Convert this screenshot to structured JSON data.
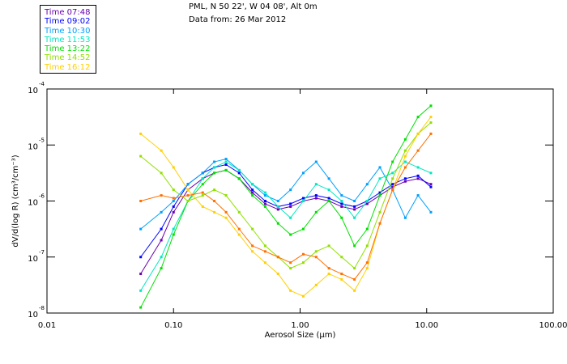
{
  "header": {
    "line1": "PML, N 50 22', W 04 08', Alt 0m",
    "line2": "Data from: 26 Mar 2012"
  },
  "chart_data": {
    "type": "line",
    "title": "PML, N 50 22', W 04 08', Alt 0m",
    "subtitle": "Data from: 26 Mar 2012",
    "xlabel": "Aerosol Size (μm)",
    "ylabel": "dV/d(log R) (cm³/cm⁻³)",
    "xscale": "log",
    "yscale": "log",
    "xlim": [
      0.01,
      100
    ],
    "ylim_log10": [
      -8,
      -4
    ],
    "xticks": [
      "0.01",
      "0.10",
      "1.00",
      "10.00",
      "100.00"
    ],
    "yticks": [
      {
        "base": "10",
        "exp": "-4"
      },
      {
        "base": "10",
        "exp": "-5"
      },
      {
        "base": "10",
        "exp": "-6"
      },
      {
        "base": "10",
        "exp": "-7"
      },
      {
        "base": "10",
        "exp": "-8"
      }
    ],
    "legend_placement": "top-left outside",
    "x": [
      0.055,
      0.08,
      0.1,
      0.13,
      0.17,
      0.21,
      0.26,
      0.33,
      0.42,
      0.53,
      0.67,
      0.84,
      1.06,
      1.34,
      1.69,
      2.13,
      2.69,
      3.39,
      4.27,
      5.38,
      6.78,
      8.55,
      10.8
    ],
    "series": [
      {
        "name": "Time 07:48",
        "color": "#6a00b0",
        "values_log10": [
          -7.3,
          -6.7,
          -6.2,
          -5.8,
          -5.6,
          -5.5,
          -5.45,
          -5.6,
          -5.85,
          -6.05,
          -6.15,
          -6.1,
          -6.0,
          -5.95,
          -6.0,
          -6.1,
          -6.15,
          -6.05,
          -5.9,
          -5.75,
          -5.65,
          -5.6,
          -5.7
        ]
      },
      {
        "name": "Time 09:02",
        "color": "#0000ff",
        "values_log10": [
          -7.0,
          -6.5,
          -6.1,
          -5.7,
          -5.5,
          -5.4,
          -5.35,
          -5.5,
          -5.8,
          -6.0,
          -6.1,
          -6.05,
          -5.95,
          -5.9,
          -5.95,
          -6.05,
          -6.1,
          -6.0,
          -5.85,
          -5.7,
          -5.6,
          -5.55,
          -5.75
        ]
      },
      {
        "name": "Time 10:30",
        "color": "#00a0ff",
        "values_log10": [
          -6.5,
          -6.2,
          -6.0,
          -5.7,
          -5.5,
          -5.3,
          -5.25,
          -5.45,
          -5.7,
          -5.9,
          -6.0,
          -5.8,
          -5.5,
          -5.3,
          -5.6,
          -5.9,
          -6.0,
          -5.7,
          -5.4,
          -5.8,
          -6.3,
          -5.9,
          -6.2
        ]
      },
      {
        "name": "Time 11:53",
        "color": "#00e8c0",
        "values_log10": [
          -7.6,
          -7.0,
          -6.5,
          -6.0,
          -5.6,
          -5.4,
          -5.3,
          -5.45,
          -5.7,
          -5.85,
          -6.1,
          -6.3,
          -6.0,
          -5.7,
          -5.8,
          -6.0,
          -6.3,
          -6.0,
          -5.6,
          -5.5,
          -5.3,
          -5.4,
          -5.5
        ]
      },
      {
        "name": "Time 13:22",
        "color": "#00e000",
        "values_log10": [
          -7.9,
          -7.2,
          -6.6,
          -6.0,
          -5.7,
          -5.5,
          -5.45,
          -5.6,
          -5.9,
          -6.1,
          -6.4,
          -6.6,
          -6.5,
          -6.2,
          -6.0,
          -6.3,
          -6.8,
          -6.5,
          -5.9,
          -5.3,
          -4.9,
          -4.5,
          -4.3
        ]
      },
      {
        "name": "Time 14:52",
        "color": "#90e000",
        "values_log10": [
          -5.2,
          -5.5,
          -5.8,
          -6.0,
          -5.9,
          -5.8,
          -5.9,
          -6.2,
          -6.5,
          -6.8,
          -7.0,
          -7.2,
          -7.1,
          -6.9,
          -6.8,
          -7.0,
          -7.2,
          -6.8,
          -6.2,
          -5.6,
          -5.1,
          -4.8,
          -4.6
        ]
      },
      {
        "name": "Time 16:12",
        "color": "#ffd000",
        "values_log10": [
          -4.8,
          -5.1,
          -5.4,
          -5.8,
          -6.1,
          -6.2,
          -6.3,
          -6.6,
          -6.9,
          -7.1,
          -7.3,
          -7.6,
          -7.7,
          -7.5,
          -7.3,
          -7.4,
          -7.6,
          -7.2,
          -6.4,
          -5.8,
          -5.2,
          -4.8,
          -4.5
        ]
      },
      {
        "color": "#ff7000",
        "values_log10": [
          -6.0,
          -5.9,
          -5.95,
          -5.9,
          -5.85,
          -6.0,
          -6.2,
          -6.5,
          -6.8,
          -6.9,
          -7.0,
          -7.1,
          -6.95,
          -7.0,
          -7.2,
          -7.3,
          -7.4,
          -7.1,
          -6.4,
          -5.8,
          -5.4,
          -5.1,
          -4.8
        ]
      }
    ]
  }
}
